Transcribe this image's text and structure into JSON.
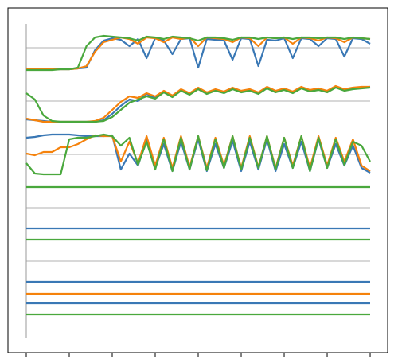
{
  "chart_data": {
    "type": "line",
    "x": [
      0,
      2,
      4,
      6,
      8,
      10,
      12,
      14,
      16,
      18,
      20,
      22,
      24,
      26,
      28,
      30,
      32,
      34,
      36,
      38,
      40,
      42,
      44,
      46,
      48,
      50,
      52,
      54,
      56,
      58,
      60,
      62,
      64,
      66,
      68,
      70,
      72,
      74,
      76,
      78,
      80
    ],
    "xlim": [
      -4.26,
      84.07
    ],
    "xticks": [
      0,
      10,
      20,
      30,
      40,
      50,
      60,
      70,
      80
    ],
    "ylim": [
      0,
      433
    ],
    "yticks": [
      115,
      182,
      249,
      316,
      383
    ],
    "grid": true,
    "series": [
      {
        "color": "#3a78b5",
        "values": [
          357,
          356,
          356,
          356,
          356,
          356,
          357,
          358,
          380,
          392,
          395,
          393,
          385,
          394,
          370,
          395,
          392,
          375,
          394,
          395,
          358,
          394,
          393,
          392,
          368,
          395,
          394,
          360,
          393,
          392,
          395,
          370,
          395,
          394,
          385,
          395,
          394,
          372,
          395,
          394,
          388
        ]
      },
      {
        "color": "#f5820c",
        "values": [
          356,
          356,
          356,
          356,
          356,
          356,
          357,
          360,
          378,
          390,
          393,
          396,
          394,
          388,
          396,
          395,
          390,
          396,
          394,
          396,
          385,
          396,
          395,
          394,
          390,
          396,
          395,
          385,
          396,
          395,
          396,
          388,
          396,
          395,
          392,
          396,
          395,
          390,
          396,
          395,
          394
        ]
      },
      {
        "color": "#4aa83d",
        "values": [
          355,
          355,
          355,
          355,
          356,
          356,
          358,
          385,
          396,
          398,
          397,
          396,
          395,
          392,
          397,
          396,
          394,
          397,
          396,
          395,
          392,
          396,
          396,
          395,
          393,
          396,
          396,
          394,
          396,
          395,
          396,
          394,
          396,
          396,
          395,
          396,
          396,
          394,
          396,
          395,
          394
        ]
      },
      {
        "color": "#3a78b5",
        "values": [
          293,
          292,
          291,
          290,
          290,
          290,
          290,
          290,
          290,
          292,
          300,
          310,
          318,
          316,
          325,
          320,
          328,
          322,
          330,
          325,
          332,
          326,
          330,
          327,
          332,
          328,
          330,
          326,
          333,
          328,
          331,
          327,
          333,
          329,
          331,
          328,
          334,
          330,
          332,
          333,
          334
        ]
      },
      {
        "color": "#f5820c",
        "values": [
          294,
          292,
          290,
          290,
          290,
          290,
          290,
          290,
          291,
          295,
          305,
          315,
          322,
          320,
          326,
          322,
          329,
          323,
          331,
          326,
          333,
          327,
          331,
          328,
          333,
          329,
          331,
          327,
          334,
          329,
          332,
          328,
          334,
          330,
          332,
          329,
          335,
          331,
          333,
          334,
          334
        ]
      },
      {
        "color": "#4aa83d",
        "values": [
          326,
          318,
          298,
          291,
          290,
          290,
          290,
          290,
          290,
          291,
          296,
          305,
          314,
          318,
          322,
          319,
          327,
          321,
          329,
          324,
          331,
          325,
          329,
          326,
          331,
          327,
          329,
          325,
          332,
          327,
          330,
          326,
          332,
          328,
          330,
          327,
          333,
          329,
          331,
          332,
          333
        ]
      },
      {
        "color": "#3a78b5",
        "values": [
          270,
          271,
          273,
          274,
          274,
          274,
          273,
          272,
          272,
          272,
          273,
          230,
          250,
          235,
          268,
          232,
          262,
          228,
          265,
          230,
          268,
          228,
          262,
          232,
          266,
          228,
          265,
          230,
          268,
          228,
          262,
          232,
          265,
          228,
          268,
          232,
          262,
          235,
          260,
          232,
          226
        ]
      },
      {
        "color": "#f5820c",
        "values": [
          250,
          248,
          252,
          252,
          258,
          258,
          262,
          268,
          273,
          272,
          272,
          240,
          265,
          238,
          272,
          235,
          270,
          232,
          272,
          233,
          272,
          232,
          270,
          235,
          272,
          232,
          272,
          233,
          272,
          232,
          270,
          235,
          272,
          232,
          272,
          235,
          270,
          240,
          268,
          235,
          228
        ]
      },
      {
        "color": "#4aa83d",
        "values": [
          238,
          225,
          224,
          224,
          224,
          268,
          270,
          270,
          272,
          274,
          272,
          260,
          270,
          236,
          265,
          230,
          268,
          228,
          270,
          230,
          272,
          229,
          268,
          232,
          272,
          230,
          270,
          232,
          272,
          230,
          270,
          232,
          272,
          228,
          270,
          232,
          268,
          236,
          265,
          260,
          240
        ]
      },
      {
        "color": "#4aa83d",
        "values": [
          208,
          208,
          208,
          208,
          208,
          208,
          208,
          208,
          208,
          208,
          208,
          208,
          208,
          208,
          208,
          208,
          208,
          208,
          208,
          208,
          208,
          208,
          208,
          208,
          208,
          208,
          208,
          208,
          208,
          208,
          208,
          208,
          208,
          208,
          208,
          208,
          208,
          208,
          208,
          208,
          208
        ]
      },
      {
        "color": "#3a78b5",
        "values": [
          156,
          156,
          156,
          156,
          156,
          156,
          156,
          156,
          156,
          156,
          156,
          156,
          156,
          156,
          156,
          156,
          156,
          156,
          156,
          156,
          156,
          156,
          156,
          156,
          156,
          156,
          156,
          156,
          156,
          156,
          156,
          156,
          156,
          156,
          156,
          156,
          156,
          156,
          156,
          156,
          156
        ]
      },
      {
        "color": "#4aa83d",
        "values": [
          142,
          142,
          142,
          142,
          142,
          142,
          142,
          142,
          142,
          142,
          142,
          142,
          142,
          142,
          142,
          142,
          142,
          142,
          142,
          142,
          142,
          142,
          142,
          142,
          142,
          142,
          142,
          142,
          142,
          142,
          142,
          142,
          142,
          142,
          142,
          142,
          142,
          142,
          142,
          142,
          142
        ]
      },
      {
        "color": "#3a78b5",
        "values": [
          89,
          89,
          89,
          89,
          89,
          89,
          89,
          89,
          89,
          89,
          89,
          89,
          89,
          89,
          89,
          89,
          89,
          89,
          89,
          89,
          89,
          89,
          89,
          89,
          89,
          89,
          89,
          89,
          89,
          89,
          89,
          89,
          89,
          89,
          89,
          89,
          89,
          89,
          89,
          89,
          89
        ]
      },
      {
        "color": "#f5820c",
        "values": [
          74,
          74,
          74,
          74,
          74,
          74,
          74,
          74,
          74,
          74,
          74,
          74,
          74,
          74,
          74,
          74,
          74,
          74,
          74,
          74,
          74,
          74,
          74,
          74,
          74,
          74,
          74,
          74,
          74,
          74,
          74,
          74,
          74,
          74,
          74,
          74,
          74,
          74,
          74,
          74,
          74
        ]
      },
      {
        "color": "#3a78b5",
        "values": [
          62,
          62,
          62,
          62,
          62,
          62,
          62,
          62,
          62,
          62,
          62,
          62,
          62,
          62,
          62,
          62,
          62,
          62,
          62,
          62,
          62,
          62,
          62,
          62,
          62,
          62,
          62,
          62,
          62,
          62,
          62,
          62,
          62,
          62,
          62,
          62,
          62,
          62,
          62,
          62,
          62
        ]
      },
      {
        "color": "#4aa83d",
        "values": [
          48,
          48,
          48,
          48,
          48,
          48,
          48,
          48,
          48,
          48,
          48,
          48,
          48,
          48,
          48,
          48,
          48,
          48,
          48,
          48,
          48,
          48,
          48,
          48,
          48,
          48,
          48,
          48,
          48,
          48,
          48,
          48,
          48,
          48,
          48,
          48,
          48,
          48,
          48,
          48,
          48
        ]
      }
    ]
  }
}
